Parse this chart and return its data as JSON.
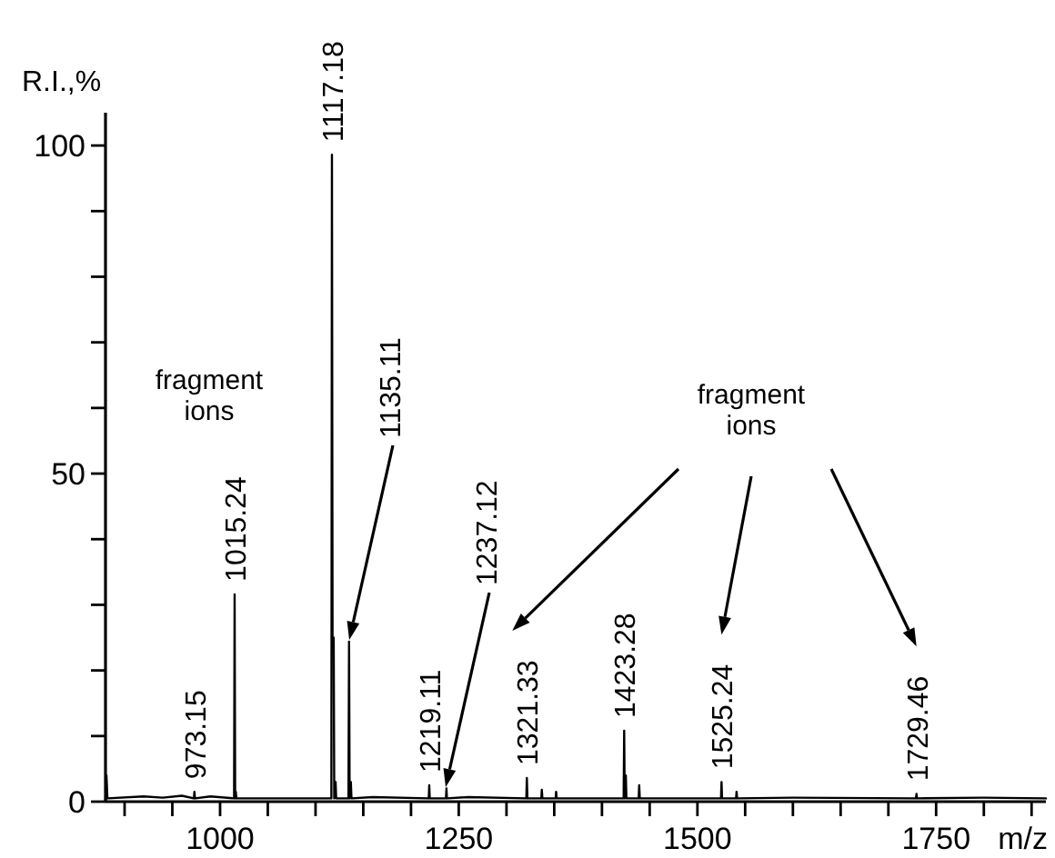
{
  "chart_data": {
    "type": "line",
    "xlabel": "m/z",
    "ylabel": "R.I.,%",
    "x": [
      880,
      881,
      882,
      920,
      940,
      960,
      972.6,
      973.15,
      973.7,
      990,
      1014.7,
      1015.24,
      1015.8,
      1016.5,
      1017,
      1060,
      1116.6,
      1117.18,
      1117.8,
      1119,
      1119.6,
      1121,
      1121.6,
      1134.5,
      1135.11,
      1135.7,
      1137,
      1137.6,
      1160,
      1218.6,
      1219.11,
      1219.6,
      1236.6,
      1237.12,
      1237.6,
      1260,
      1320.8,
      1321.33,
      1321.9,
      1336.5,
      1337,
      1337.6,
      1351.5,
      1352,
      1352.6,
      1422.7,
      1423.28,
      1423.8,
      1425,
      1425.6,
      1438.5,
      1439,
      1439.6,
      1524.7,
      1525.24,
      1525.8,
      1540.5,
      1541,
      1541.6,
      1600,
      1728.9,
      1729.46,
      1730,
      1800,
      1865
    ],
    "series": [
      {
        "color": "#000000",
        "values": [
          0,
          4,
          0.5,
          0.8,
          0.6,
          0.9,
          0.5,
          1.5,
          0.5,
          0.8,
          0.5,
          31.6,
          0.5,
          1.5,
          0.5,
          0.5,
          0.5,
          98.6,
          25,
          25,
          0.5,
          3,
          0.5,
          0.5,
          24.4,
          0.5,
          3,
          0.5,
          0.7,
          0.5,
          2.5,
          0.5,
          0.5,
          2,
          0.5,
          0.7,
          0.5,
          3.6,
          0.5,
          0.5,
          1.8,
          0.5,
          0.5,
          1.5,
          0.5,
          0.5,
          10.8,
          0.5,
          4,
          0.5,
          0.5,
          2.5,
          0.5,
          0.5,
          3,
          0.5,
          0.5,
          1.5,
          0.5,
          0.6,
          0.5,
          1.2,
          0.5,
          0.6,
          0.5
        ]
      }
    ],
    "xlim": [
      880,
      1865
    ],
    "xticks": [
      {
        "value": 900,
        "label": null
      },
      {
        "value": 950,
        "label": null
      },
      1000,
      {
        "value": 1050,
        "label": null
      },
      {
        "value": 1100,
        "label": null
      },
      {
        "value": 1150,
        "label": null
      },
      {
        "value": 1200,
        "label": null
      },
      1250,
      {
        "value": 1300,
        "label": null
      },
      {
        "value": 1350,
        "label": null
      },
      {
        "value": 1400,
        "label": null
      },
      {
        "value": 1450,
        "label": null
      },
      1500,
      {
        "value": 1550,
        "label": null
      },
      {
        "value": 1600,
        "label": null
      },
      {
        "value": 1650,
        "label": null
      },
      {
        "value": 1700,
        "label": null
      },
      1750,
      {
        "value": 1800,
        "label": null
      },
      {
        "value": 1850,
        "label": null
      }
    ],
    "ylim": [
      0,
      105
    ],
    "yticks": [
      0,
      {
        "value": 10,
        "label": null
      },
      {
        "value": 20,
        "label": null
      },
      {
        "value": 30,
        "label": null
      },
      {
        "value": 40,
        "label": null
      },
      50,
      {
        "value": 60,
        "label": null
      },
      {
        "value": 70,
        "label": null
      },
      {
        "value": 80,
        "label": null
      },
      {
        "value": 90,
        "label": null
      },
      100
    ],
    "grid": false,
    "marker": "none",
    "line_style": "solid",
    "annotations": [
      {
        "text": "973.15",
        "x": 973.15,
        "y": 1.5
      },
      {
        "text": "1015.24",
        "x": 1015.24,
        "y": 31.6
      },
      {
        "text": "1117.18",
        "x": 1117.18,
        "y": 98.6
      },
      {
        "text": "1219.11",
        "x": 1219.11,
        "y": 2.5
      },
      {
        "text": "1321.33",
        "x": 1321.33,
        "y": 3.6
      },
      {
        "text": "1423.28",
        "x": 1423.28,
        "y": 10.8
      },
      {
        "text": "1525.24",
        "x": 1525.24,
        "y": 3
      },
      {
        "text": "1729.46",
        "x": 1729.46,
        "y": 1.2
      },
      "1135.11",
      "1237.12",
      "fragment\nions",
      "fragment\nions"
    ]
  }
}
